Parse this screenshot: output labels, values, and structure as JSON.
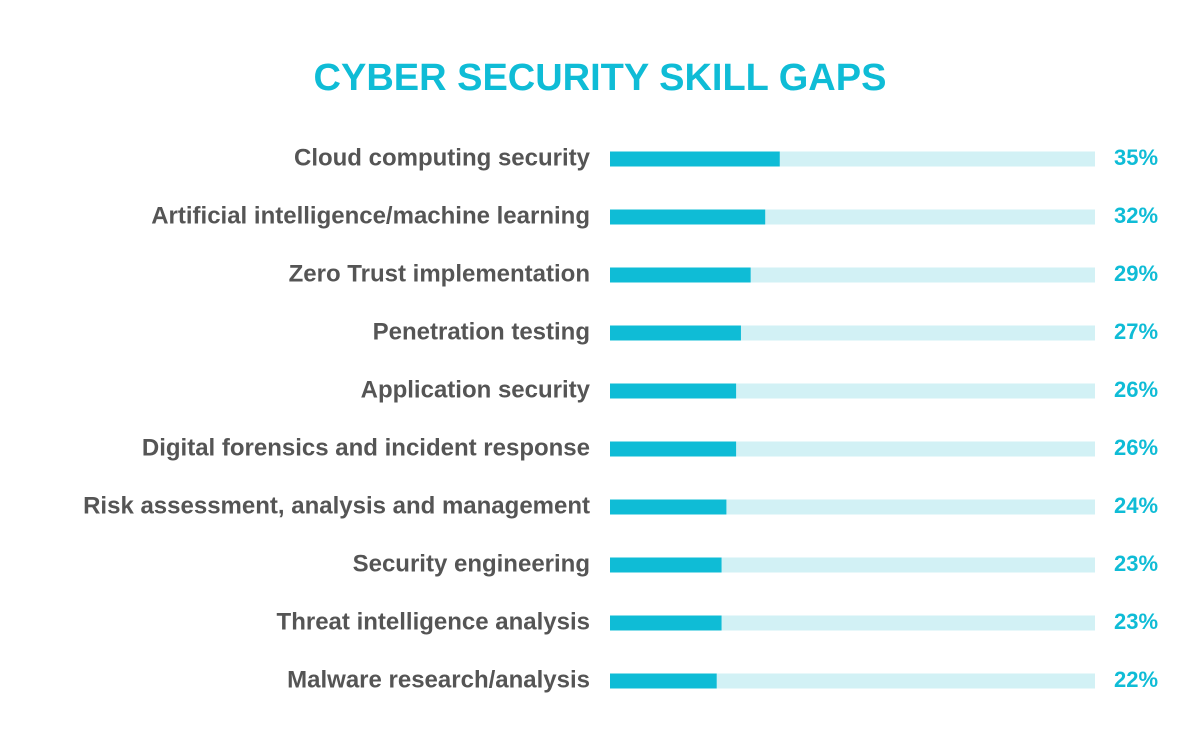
{
  "chart_data": {
    "type": "hbar",
    "title": "CYBER SECURITY SKILL GAPS",
    "categories": [
      "Cloud computing security",
      "Artificial intelligence/machine learning",
      "Zero Trust implementation",
      "Penetration testing",
      "Application security",
      "Digital forensics and incident response",
      "Risk assessment, analysis and management",
      "Security engineering",
      "Threat intelligence analysis",
      "Malware research/analysis"
    ],
    "values": [
      35,
      32,
      29,
      27,
      26,
      26,
      24,
      23,
      23,
      22
    ],
    "value_labels": [
      "35%",
      "32%",
      "29%",
      "27%",
      "26%",
      "26%",
      "24%",
      "23%",
      "23%",
      "22%"
    ],
    "color": "#0fbcd6",
    "track_color": "#d2f1f5",
    "xlim": [
      0,
      100
    ]
  }
}
